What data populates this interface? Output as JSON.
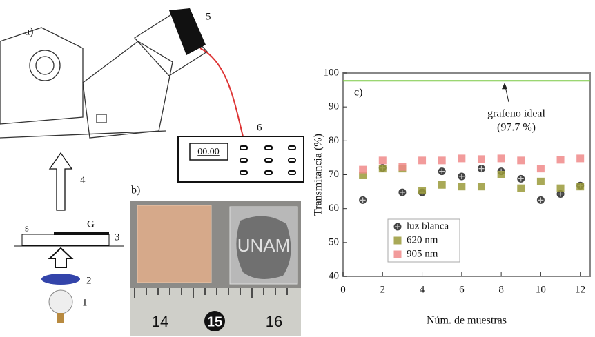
{
  "diagram": {
    "label": "a)",
    "camera": "5",
    "meter": "6",
    "display": "00.00",
    "arrow": "4",
    "graphene": "G",
    "substrate": "s",
    "sample": "3",
    "filter": "2",
    "lamp": "1"
  },
  "photo": {
    "label": "b)",
    "stamp": "UNAM",
    "ruler": [
      "14",
      "15",
      "16"
    ]
  },
  "chart_data": {
    "type": "scatter",
    "label": "c)",
    "x_label": "Núm. de muestras",
    "y_label": "Transmitancia (%)",
    "xlim": [
      0,
      12.5
    ],
    "ylim": [
      40,
      100
    ],
    "xticks": [
      0,
      2,
      4,
      6,
      8,
      10,
      12
    ],
    "yticks": [
      40,
      50,
      60,
      70,
      80,
      90,
      100
    ],
    "x": [
      1,
      2,
      3,
      4,
      5,
      6,
      7,
      8,
      9,
      10,
      11,
      12
    ],
    "series": [
      {
        "name": "luz blanca",
        "color": "#444444",
        "marker": "circle-x",
        "values": [
          62.5,
          72,
          64.8,
          64.8,
          71,
          69.5,
          71.8,
          71,
          68.8,
          62.5,
          64.3,
          66.8
        ]
      },
      {
        "name": "620 nm",
        "color": "#9a9a3a",
        "marker": "square",
        "values": [
          69.8,
          71.8,
          71.8,
          65.3,
          67,
          66.5,
          66.5,
          70,
          66,
          68,
          66,
          66.5
        ]
      },
      {
        "name": "905 nm",
        "color": "#f08a8a",
        "marker": "square",
        "values": [
          71.5,
          74.2,
          72.3,
          74.2,
          74.2,
          74.8,
          74.6,
          74.8,
          74.2,
          71.8,
          74.4,
          74.8
        ]
      }
    ],
    "reference_line": {
      "value": 97.7,
      "name": "grafeno ideal",
      "label": "(97.7 %)",
      "color": "#7ac943"
    }
  }
}
